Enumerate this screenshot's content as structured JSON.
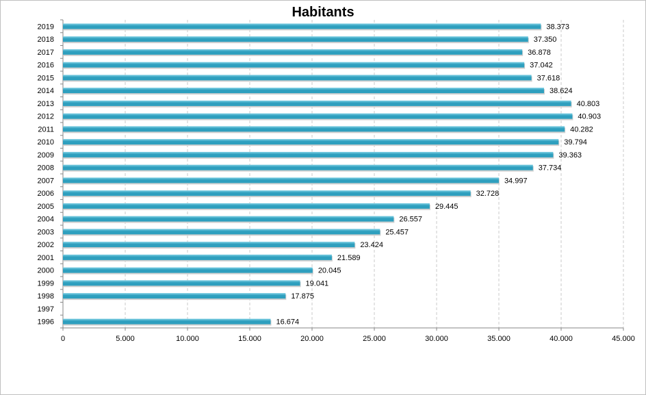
{
  "chart_data": {
    "type": "bar",
    "orientation": "horizontal",
    "title": "Habitants",
    "xlabel": "",
    "ylabel": "",
    "categories": [
      "2019",
      "2018",
      "2017",
      "2016",
      "2015",
      "2014",
      "2013",
      "2012",
      "2011",
      "2010",
      "2009",
      "2008",
      "2007",
      "2006",
      "2005",
      "2004",
      "2003",
      "2002",
      "2001",
      "2000",
      "1999",
      "1998",
      "1997",
      "1996"
    ],
    "values": [
      38373,
      37350,
      36878,
      37042,
      37618,
      38624,
      40803,
      40903,
      40282,
      39794,
      39363,
      37734,
      34997,
      32728,
      29445,
      26557,
      25457,
      23424,
      21589,
      20045,
      19041,
      17875,
      null,
      16674
    ],
    "data_labels": [
      "38.373",
      "37.350",
      "36.878",
      "37.042",
      "37.618",
      "38.624",
      "40.803",
      "40.903",
      "40.282",
      "39.794",
      "39.363",
      "37.734",
      "34.997",
      "32.728",
      "29.445",
      "26.557",
      "25.457",
      "23.424",
      "21.589",
      "20.045",
      "19.041",
      "17.875",
      "",
      "16.674"
    ],
    "xlim": [
      0,
      45000
    ],
    "x_ticks": [
      0,
      5000,
      10000,
      15000,
      20000,
      25000,
      30000,
      35000,
      40000,
      45000
    ],
    "x_tick_labels": [
      "0",
      "5.000",
      "10.000",
      "15.000",
      "20.000",
      "25.000",
      "30.000",
      "35.000",
      "40.000",
      "45.000"
    ],
    "grid": "vertical-dashed",
    "legend": "none",
    "bar_color": "#2e9fbe",
    "bar_highlight_color": "#7fd0e4",
    "grid_color": "#c8c8c8",
    "axis_color": "#868686"
  }
}
